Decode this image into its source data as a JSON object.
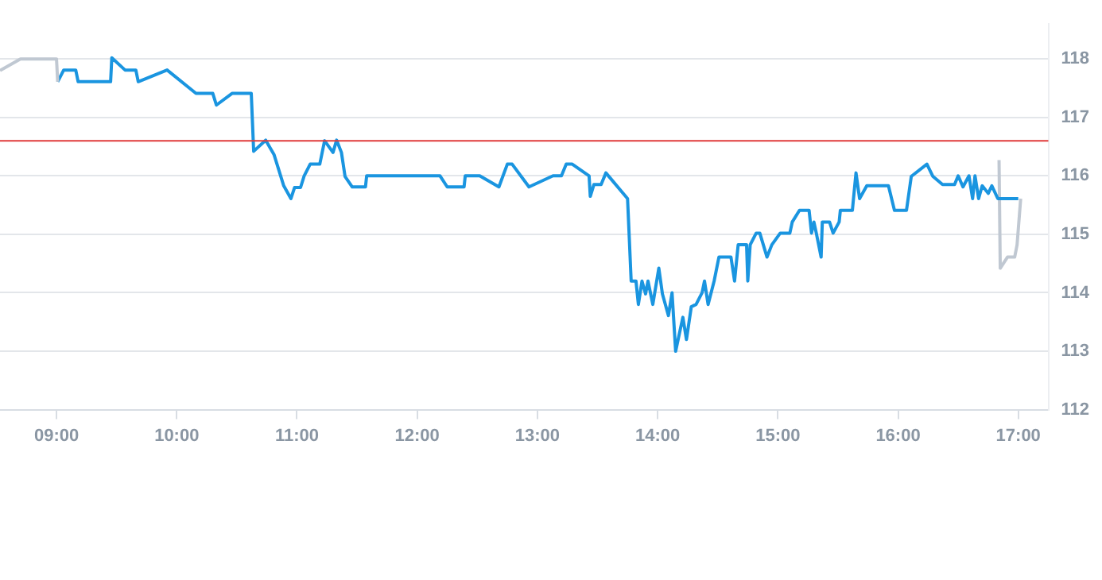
{
  "chart_data": {
    "type": "line",
    "xlim": [
      8.53,
      17.25
    ],
    "ylim": [
      112,
      118.6
    ],
    "xticks": [
      {
        "value": 9,
        "label": "09:00"
      },
      {
        "value": 10,
        "label": "10:00"
      },
      {
        "value": 11,
        "label": "11:00"
      },
      {
        "value": 12,
        "label": "12:00"
      },
      {
        "value": 13,
        "label": "13:00"
      },
      {
        "value": 14,
        "label": "14:00"
      },
      {
        "value": 15,
        "label": "15:00"
      },
      {
        "value": 16,
        "label": "16:00"
      },
      {
        "value": 17,
        "label": "17:00"
      }
    ],
    "yticks": [
      112,
      113,
      114,
      115,
      116,
      117,
      118
    ],
    "grid": "y",
    "marker": "none",
    "line_style": "solid",
    "ref_lines": [
      {
        "axis": "y",
        "value": 116.6,
        "color": "#e03a3a"
      }
    ],
    "series": [
      {
        "color": "#c0c8d2",
        "x": [
          8.53,
          8.7,
          9.0,
          9.01
        ],
        "values": [
          117.8,
          118.0,
          118.0,
          117.61
        ]
      },
      {
        "color": "#1a95e0",
        "x": [
          9.01,
          9.06,
          9.16,
          9.18,
          9.45,
          9.46,
          9.57,
          9.66,
          9.68,
          9.92,
          10.16,
          10.3,
          10.33,
          10.46,
          10.62,
          10.64,
          10.74,
          10.81,
          10.89,
          10.95,
          10.98,
          11.03,
          11.06,
          11.11,
          11.19,
          11.23,
          11.3,
          11.33,
          11.37,
          11.4,
          11.46,
          11.57,
          11.58,
          12.19,
          12.25,
          12.39,
          12.4,
          12.52,
          12.68,
          12.75,
          12.79,
          12.93,
          13.13,
          13.2,
          13.24,
          13.29,
          13.43,
          13.44,
          13.47,
          13.53,
          13.57,
          13.75,
          13.78,
          13.82,
          13.84,
          13.87,
          13.9,
          13.92,
          13.96,
          14.01,
          14.04,
          14.09,
          14.12,
          14.15,
          14.21,
          14.24,
          14.28,
          14.32,
          14.37,
          14.39,
          14.42,
          14.47,
          14.51,
          14.61,
          14.64,
          14.67,
          14.74,
          14.75,
          14.77,
          14.82,
          14.85,
          14.91,
          14.95,
          15.02,
          15.1,
          15.12,
          15.18,
          15.26,
          15.28,
          15.3,
          15.32,
          15.36,
          15.37,
          15.43,
          15.46,
          15.51,
          15.52,
          15.62,
          15.65,
          15.68,
          15.74,
          15.92,
          15.97,
          16.07,
          16.11,
          16.24,
          16.29,
          16.37,
          16.47,
          16.5,
          16.54,
          16.59,
          16.62,
          16.64,
          16.67,
          16.7,
          16.75,
          16.78,
          16.83,
          17.0
        ],
        "values": [
          117.61,
          117.81,
          117.81,
          117.61,
          117.61,
          118.02,
          117.81,
          117.81,
          117.61,
          117.81,
          117.41,
          117.41,
          117.21,
          117.41,
          117.41,
          116.42,
          116.61,
          116.36,
          115.83,
          115.61,
          115.8,
          115.8,
          116.0,
          116.2,
          116.2,
          116.6,
          116.4,
          116.61,
          116.4,
          115.99,
          115.81,
          115.81,
          116.0,
          116.0,
          115.81,
          115.81,
          116.0,
          116.0,
          115.81,
          116.2,
          116.2,
          115.81,
          116.0,
          116.0,
          116.2,
          116.2,
          116.0,
          115.65,
          115.85,
          115.85,
          116.05,
          115.61,
          114.2,
          114.2,
          113.8,
          114.2,
          113.98,
          114.2,
          113.8,
          114.42,
          113.98,
          113.61,
          114.0,
          113.0,
          113.58,
          113.2,
          113.76,
          113.8,
          114.0,
          114.2,
          113.8,
          114.2,
          114.61,
          114.61,
          114.2,
          114.82,
          114.82,
          114.2,
          114.82,
          115.02,
          115.02,
          114.61,
          114.82,
          115.02,
          115.02,
          115.21,
          115.41,
          115.41,
          115.02,
          115.21,
          115.02,
          114.61,
          115.21,
          115.21,
          115.02,
          115.21,
          115.41,
          115.41,
          116.05,
          115.61,
          115.83,
          115.83,
          115.41,
          115.41,
          115.99,
          116.2,
          115.99,
          115.85,
          115.85,
          116.0,
          115.81,
          116.0,
          115.61,
          116.0,
          115.61,
          115.83,
          115.7,
          115.83,
          115.61,
          115.61
        ]
      },
      {
        "color": "#c0c8d2",
        "x": [
          16.84,
          16.85,
          16.91,
          16.97,
          16.99,
          17.02
        ],
        "values": [
          116.27,
          114.42,
          114.61,
          114.61,
          114.82,
          115.61
        ]
      }
    ]
  }
}
